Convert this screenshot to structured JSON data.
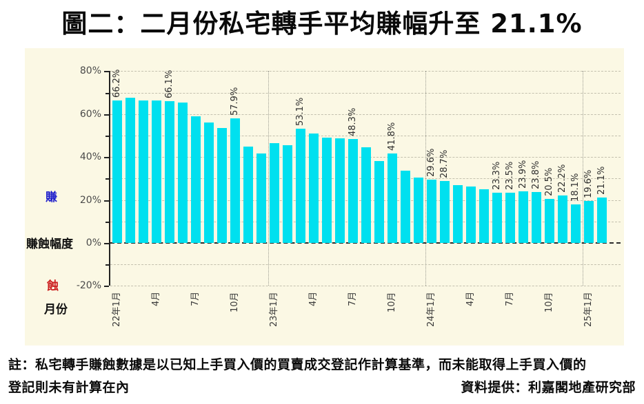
{
  "title": "圖二：二月份私宅轉手平均賺幅升至 21.1%",
  "legend": {
    "profit_label": "賺",
    "axis_label": "賺蝕幅度",
    "loss_label": "蝕",
    "x_axis_label": "月份"
  },
  "notes": {
    "line1": "註：私宅轉手賺蝕數據是以已知上手買入價的買賣成交登記作計算基準，而未能取得上手買入價的",
    "line2": "登記則未有計算在內",
    "source": "資料提供：利嘉閣地產研究部"
  },
  "colors": {
    "bar": "#00e0ef",
    "panel_bg": "#fbf8e4",
    "grid": "#c3c0ae",
    "separator": "#9a9a90",
    "zero_line": "#2a2a2a",
    "axis": "#222222",
    "profit_text": "#2121cc",
    "loss_text": "#cc2020",
    "tick_text": "#4a4a4a"
  },
  "chart_data": {
    "type": "bar",
    "unit": "%",
    "n_bars": 38,
    "period": "22年1月 至 25年1月之後一月（按月）",
    "values": [
      66.2,
      67.7,
      66.5,
      66.3,
      66.1,
      65.4,
      59.0,
      56.0,
      53.6,
      57.9,
      45.0,
      41.6,
      46.6,
      45.5,
      53.1,
      51.0,
      49.0,
      48.6,
      48.3,
      44.5,
      38.0,
      41.8,
      33.6,
      30.4,
      29.6,
      28.7,
      27.0,
      26.3,
      25.0,
      23.3,
      23.5,
      23.9,
      23.8,
      20.5,
      22.2,
      18.1,
      19.6,
      21.1
    ],
    "data_labels": [
      "66.2%",
      null,
      null,
      null,
      "66.1%",
      null,
      null,
      null,
      null,
      "57.9%",
      null,
      null,
      null,
      null,
      "53.1%",
      null,
      null,
      null,
      "48.3%",
      null,
      null,
      "41.8%",
      null,
      null,
      "29.6%",
      "28.7%",
      null,
      null,
      null,
      "23.3%",
      "23.5%",
      "23.9%",
      "23.8%",
      "20.5%",
      "22.2%",
      "18.1%",
      "19.6%",
      "21.1%"
    ],
    "x_ticks": [
      {
        "bar": 0,
        "label": "22年1月"
      },
      {
        "bar": 3,
        "label": "4月"
      },
      {
        "bar": 6,
        "label": "7月"
      },
      {
        "bar": 9,
        "label": "10月"
      },
      {
        "bar": 12,
        "label": "23年1月"
      },
      {
        "bar": 15,
        "label": "4月"
      },
      {
        "bar": 18,
        "label": "7月"
      },
      {
        "bar": 21,
        "label": "10月"
      },
      {
        "bar": 24,
        "label": "24年1月"
      },
      {
        "bar": 27,
        "label": "4月"
      },
      {
        "bar": 30,
        "label": "7月"
      },
      {
        "bar": 33,
        "label": "10月"
      },
      {
        "bar": 36,
        "label": "25年1月"
      }
    ],
    "y_ticks": [
      {
        "value": 80,
        "label": "80%"
      },
      {
        "value": 60,
        "label": "60%"
      },
      {
        "value": 40,
        "label": "40%"
      },
      {
        "value": 20,
        "label": "20%"
      },
      {
        "value": 0,
        "label": "0%"
      },
      {
        "value": -20,
        "label": "-20%"
      }
    ],
    "ylim": [
      -20,
      80
    ],
    "grid": "horizontal dashed every 10%, vertical dotted at year starts",
    "legend_position": "left"
  }
}
